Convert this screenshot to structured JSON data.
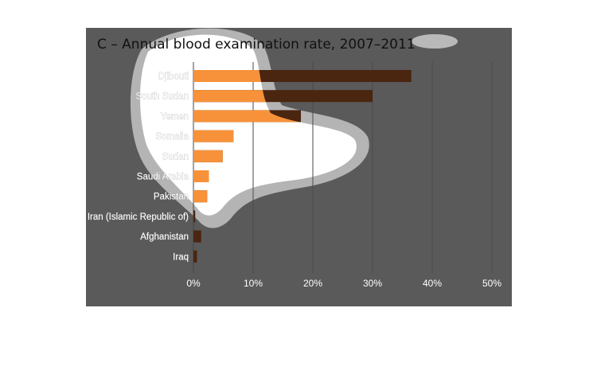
{
  "chart_data": {
    "type": "bar",
    "orientation": "horizontal",
    "title": "C – Annual blood examination rate, 2007–2011",
    "categories": [
      "Djibouti",
      "South Sudan",
      "Yemen",
      "Somalia",
      "Sudan",
      "Saudi Arabia",
      "Pakistan",
      "Iran (Islamic Republic of)",
      "Afghanistan",
      "Iraq"
    ],
    "values": [
      36.5,
      30.0,
      18.0,
      6.7,
      4.9,
      2.6,
      2.3,
      0.3,
      1.3,
      0.6
    ],
    "xlim": [
      0,
      50
    ],
    "xticks": [
      0,
      10,
      20,
      30,
      40,
      50
    ],
    "xtick_labels": [
      "0%",
      "10%",
      "20%",
      "30%",
      "40%",
      "50%"
    ],
    "xlabel": "",
    "ylabel": "",
    "grid": "vertical",
    "colors": {
      "panel": "#5a5a5a",
      "highlight": "#ffffff",
      "highlight_rim": "#b4b4b4",
      "bar_inside": "#f7923a",
      "bar_outside": "#4a2510"
    }
  }
}
